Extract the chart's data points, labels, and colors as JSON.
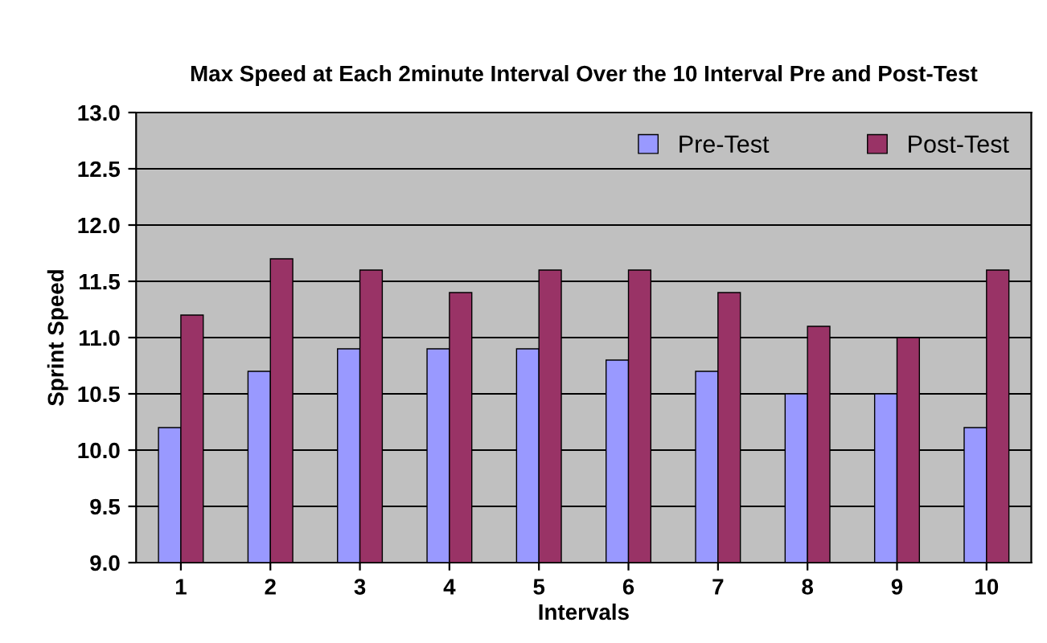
{
  "chart_data": {
    "type": "bar",
    "title": "Max Speed at Each 2minute Interval Over the 10 Interval Pre and Post-Test",
    "xlabel": "Intervals",
    "ylabel": "Sprint Speed",
    "categories": [
      "1",
      "2",
      "3",
      "4",
      "5",
      "6",
      "7",
      "8",
      "9",
      "10"
    ],
    "series": [
      {
        "name": "Pre-Test",
        "color": "#9999ff",
        "values": [
          10.2,
          10.7,
          10.9,
          10.9,
          10.9,
          10.8,
          10.7,
          10.5,
          10.5,
          10.2
        ]
      },
      {
        "name": "Post-Test",
        "color": "#993366",
        "values": [
          11.2,
          11.7,
          11.6,
          11.4,
          11.6,
          11.6,
          11.4,
          11.1,
          11.0,
          11.6
        ]
      }
    ],
    "ylim": [
      9.0,
      13.0
    ],
    "yticks": [
      {
        "value": 9.0,
        "label": "9.0"
      },
      {
        "value": 9.5,
        "label": "9.5"
      },
      {
        "value": 10.0,
        "label": "10.0"
      },
      {
        "value": 10.5,
        "label": "10.5"
      },
      {
        "value": 11.0,
        "label": "11.0"
      },
      {
        "value": 11.5,
        "label": "11.5"
      },
      {
        "value": 12.0,
        "label": "12.0"
      },
      {
        "value": 12.5,
        "label": "12.5"
      },
      {
        "value": 13.0,
        "label": "13.0"
      }
    ],
    "grid": "y",
    "legend": "top right"
  }
}
